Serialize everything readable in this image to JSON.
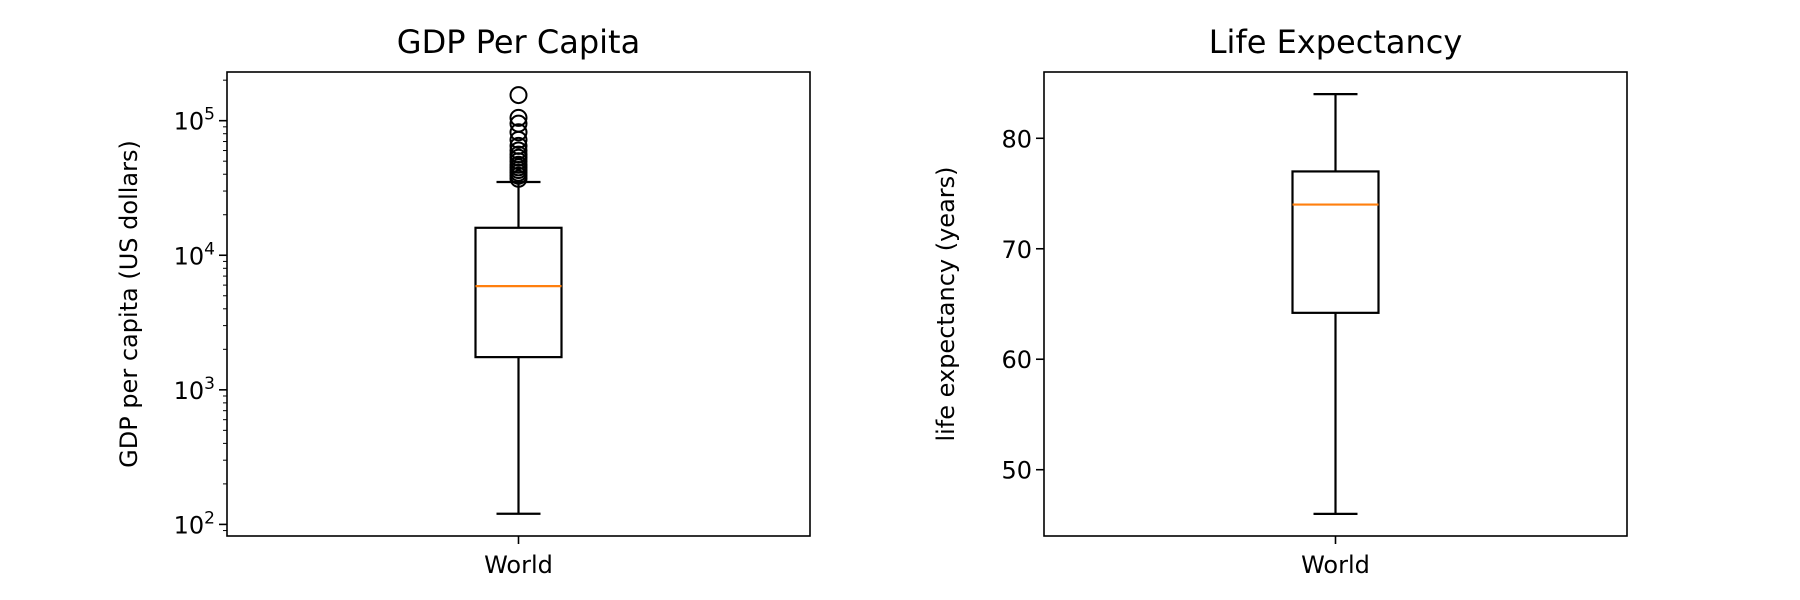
{
  "chart_data": [
    {
      "type": "box",
      "title": "GDP Per Capita",
      "ylabel": "GDP per capita (US dollars)",
      "yscale": "log",
      "ylim": [
        82,
        230000
      ],
      "yticks": [
        {
          "value": 100,
          "base": "10",
          "exp": "2"
        },
        {
          "value": 1000,
          "base": "10",
          "exp": "3"
        },
        {
          "value": 10000,
          "base": "10",
          "exp": "4"
        },
        {
          "value": 100000,
          "base": "10",
          "exp": "5"
        }
      ],
      "categories": [
        "World"
      ],
      "boxes": [
        {
          "label": "World",
          "whisker_low": 120,
          "q1": 1750,
          "median": 5900,
          "q3": 16000,
          "whisker_high": 35000,
          "fliers": [
            37000,
            39000,
            41000,
            43000,
            45000,
            47000,
            50000,
            53000,
            56000,
            60000,
            65000,
            72000,
            82000,
            95000,
            105000,
            155000
          ]
        }
      ],
      "colors": {
        "box": "#000000",
        "median": "#ff7f0e"
      }
    },
    {
      "type": "box",
      "title": "Life Expectancy",
      "ylabel": "life expectancy (years)",
      "yscale": "linear",
      "ylim": [
        44,
        86
      ],
      "yticks": [
        {
          "value": 50,
          "label": "50"
        },
        {
          "value": 60,
          "label": "60"
        },
        {
          "value": 70,
          "label": "70"
        },
        {
          "value": 80,
          "label": "80"
        }
      ],
      "categories": [
        "World"
      ],
      "boxes": [
        {
          "label": "World",
          "whisker_low": 46,
          "q1": 64.2,
          "median": 74,
          "q3": 77,
          "whisker_high": 84,
          "fliers": []
        }
      ],
      "colors": {
        "box": "#000000",
        "median": "#ff7f0e"
      }
    }
  ]
}
